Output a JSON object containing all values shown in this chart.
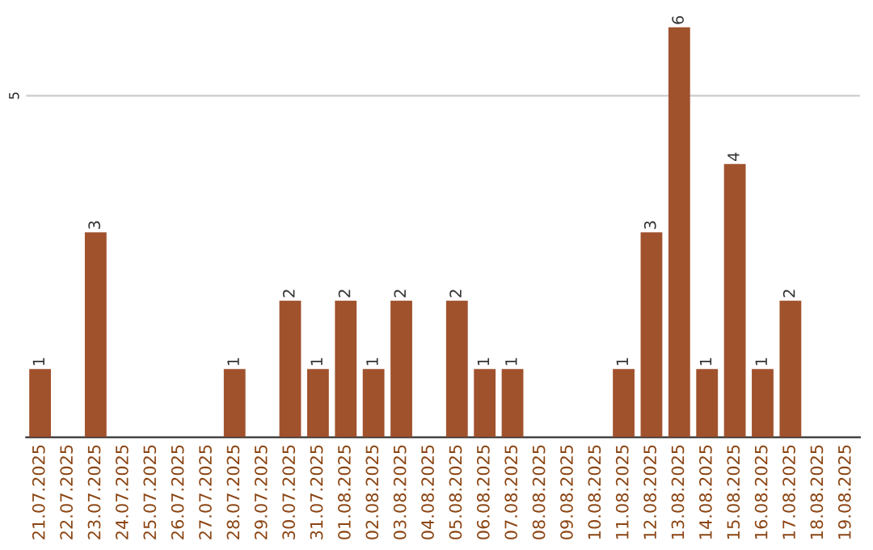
{
  "chart_data": {
    "type": "bar",
    "categories": [
      "21.07.2025",
      "22.07.2025",
      "23.07.2025",
      "24.07.2025",
      "25.07.2025",
      "26.07.2025",
      "27.07.2025",
      "28.07.2025",
      "29.07.2025",
      "30.07.2025",
      "31.07.2025",
      "01.08.2025",
      "02.08.2025",
      "03.08.2025",
      "04.08.2025",
      "05.08.2025",
      "06.08.2025",
      "07.08.2025",
      "08.08.2025",
      "09.08.2025",
      "10.08.2025",
      "11.08.2025",
      "12.08.2025",
      "13.08.2025",
      "14.08.2025",
      "15.08.2025",
      "16.08.2025",
      "17.08.2025",
      "18.08.2025",
      "19.08.2025"
    ],
    "values": [
      1,
      0,
      3,
      0,
      0,
      0,
      0,
      1,
      0,
      2,
      1,
      2,
      1,
      2,
      0,
      2,
      1,
      1,
      0,
      0,
      0,
      1,
      3,
      6,
      1,
      4,
      1,
      2,
      0,
      0
    ],
    "value_labels": [
      "1",
      null,
      "3",
      null,
      null,
      null,
      null,
      "1",
      null,
      "2",
      "1",
      "2",
      "1",
      "2",
      null,
      "2",
      "1",
      "1",
      null,
      null,
      null,
      "1",
      "3",
      "6",
      "1",
      "4",
      "1",
      "2",
      null,
      null
    ],
    "color": "#a0522d",
    "ref_lines": [
      {
        "axis": "y",
        "value": 5,
        "label": "5",
        "color": "#cccccc"
      }
    ]
  }
}
